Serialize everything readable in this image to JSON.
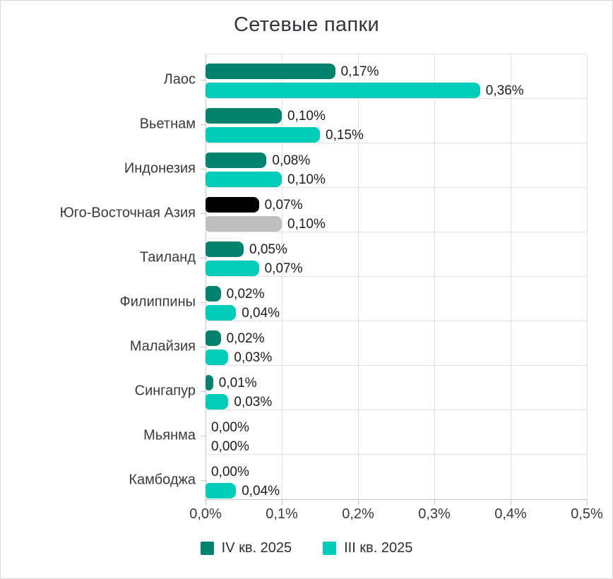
{
  "chart_data": {
    "type": "bar",
    "orientation": "horizontal",
    "title": "Сетевые папки",
    "xlim": [
      0,
      0.5
    ],
    "x_tick_values": [
      0,
      0.1,
      0.2,
      0.3,
      0.4,
      0.5
    ],
    "x_tick_labels": [
      "0,0%",
      "0,1%",
      "0,2%",
      "0,3%",
      "0,4%",
      "0,5%"
    ],
    "grid": true,
    "legend_position": "bottom",
    "series": [
      {
        "name": "IV кв. 2025",
        "color": "#00826F"
      },
      {
        "name": "III кв. 2025",
        "color": "#00CCBA"
      }
    ],
    "highlight": {
      "category": "Юго-Восточная Азия",
      "colors": [
        "#000000",
        "#BFBFBF"
      ]
    },
    "rows": [
      {
        "category": "Лаос",
        "values": [
          0.17,
          0.36
        ],
        "labels": [
          "0,17%",
          "0,36%"
        ],
        "colors": [
          "#00826F",
          "#00CCBA"
        ]
      },
      {
        "category": "Вьетнам",
        "values": [
          0.1,
          0.15
        ],
        "labels": [
          "0,10%",
          "0,15%"
        ],
        "colors": [
          "#00826F",
          "#00CCBA"
        ]
      },
      {
        "category": "Индонезия",
        "values": [
          0.08,
          0.1
        ],
        "labels": [
          "0,08%",
          "0,10%"
        ],
        "colors": [
          "#00826F",
          "#00CCBA"
        ]
      },
      {
        "category": "Юго-Восточная Азия",
        "values": [
          0.07,
          0.1
        ],
        "labels": [
          "0,07%",
          "0,10%"
        ],
        "colors": [
          "#000000",
          "#BFBFBF"
        ]
      },
      {
        "category": "Таиланд",
        "values": [
          0.05,
          0.07
        ],
        "labels": [
          "0,05%",
          "0,07%"
        ],
        "colors": [
          "#00826F",
          "#00CCBA"
        ]
      },
      {
        "category": "Филиппины",
        "values": [
          0.02,
          0.04
        ],
        "labels": [
          "0,02%",
          "0,04%"
        ],
        "colors": [
          "#00826F",
          "#00CCBA"
        ]
      },
      {
        "category": "Малайзия",
        "values": [
          0.02,
          0.03
        ],
        "labels": [
          "0,02%",
          "0,03%"
        ],
        "colors": [
          "#00826F",
          "#00CCBA"
        ]
      },
      {
        "category": "Сингапур",
        "values": [
          0.01,
          0.03
        ],
        "labels": [
          "0,01%",
          "0,03%"
        ],
        "colors": [
          "#00826F",
          "#00CCBA"
        ]
      },
      {
        "category": "Мьянма",
        "values": [
          0.0,
          0.0
        ],
        "labels": [
          "0,00%",
          "0,00%"
        ],
        "colors": [
          "#00826F",
          "#00CCBA"
        ]
      },
      {
        "category": "Камбоджа",
        "values": [
          0.0,
          0.04
        ],
        "labels": [
          "0,00%",
          "0,04%"
        ],
        "colors": [
          "#00826F",
          "#00CCBA"
        ]
      }
    ]
  },
  "colors": {
    "grid": "#e2e2e2",
    "axis": "#c6c6c6",
    "title_text": "#32363a",
    "label_text": "#3a3a3a",
    "value_text": "#1c1c1c"
  }
}
